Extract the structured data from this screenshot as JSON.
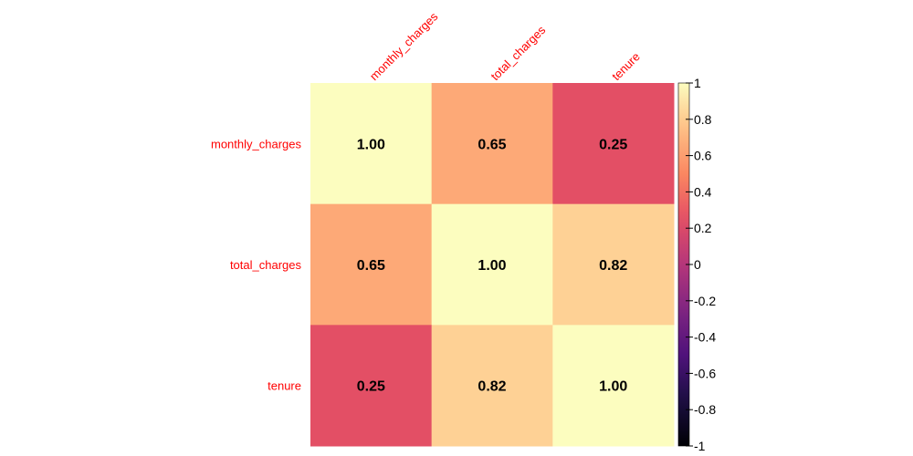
{
  "chart_data": {
    "type": "heatmap",
    "title": "",
    "labels": [
      "monthly_charges",
      "total_charges",
      "tenure"
    ],
    "matrix": [
      [
        1.0,
        0.65,
        0.25
      ],
      [
        0.65,
        1.0,
        0.82
      ],
      [
        0.25,
        0.82,
        1.0
      ]
    ],
    "value_labels": [
      [
        "1.00",
        "0.65",
        "0.25"
      ],
      [
        "0.65",
        "1.00",
        "0.82"
      ],
      [
        "0.25",
        "0.82",
        "1.00"
      ]
    ],
    "colorbar": {
      "range": [
        -1,
        1
      ],
      "ticks": [
        "1",
        "0.8",
        "0.6",
        "0.4",
        "0.2",
        "0",
        "-0.2",
        "-0.4",
        "-0.6",
        "-0.8",
        "-1"
      ],
      "colormap": "magma"
    },
    "label_color": "#ff0000"
  }
}
